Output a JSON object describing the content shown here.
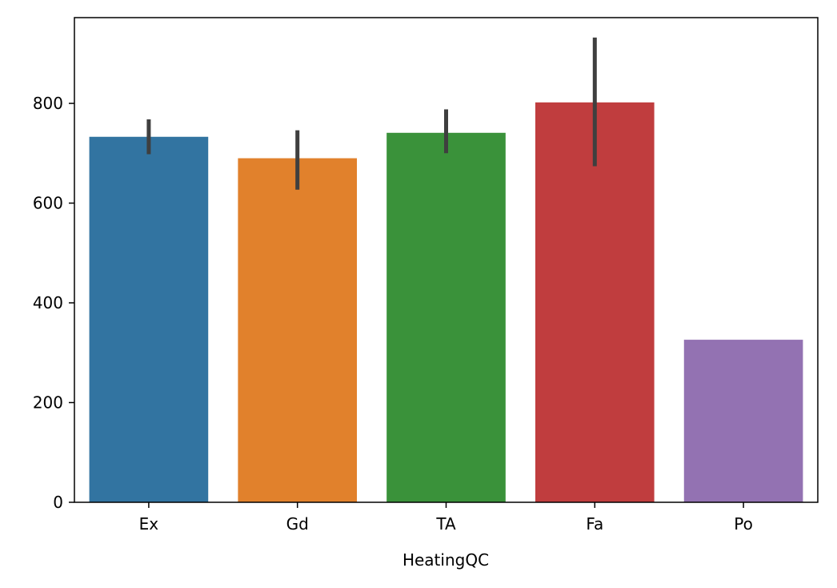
{
  "chart_data": {
    "type": "bar",
    "title": "",
    "xlabel": "HeatingQC",
    "ylabel": "",
    "categories": [
      "Ex",
      "Gd",
      "TA",
      "Fa",
      "Po"
    ],
    "values": [
      733,
      690,
      741,
      802,
      326
    ],
    "error_bars": [
      [
        698,
        768
      ],
      [
        627,
        746
      ],
      [
        700,
        788
      ],
      [
        674,
        932
      ],
      null
    ],
    "colors": [
      "#3274a1",
      "#e1812c",
      "#3a923a",
      "#c03d3e",
      "#9372b2"
    ],
    "error_color": "#3f3f3f",
    "ylim": [
      0,
      972
    ],
    "yticks": [
      0,
      200,
      400,
      600,
      800
    ],
    "grid": false,
    "legend": "none"
  }
}
